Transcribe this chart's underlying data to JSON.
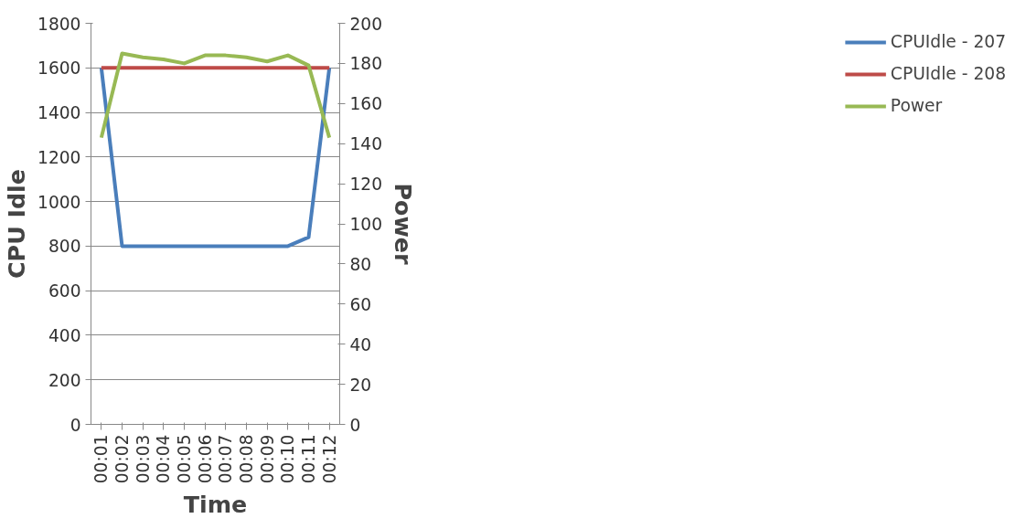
{
  "chart_data": {
    "type": "line",
    "xlabel": "Time",
    "ylabel": "CPU Idle",
    "y2label": "Power",
    "categories": [
      "00:01",
      "00:02",
      "00:03",
      "00:04",
      "00:05",
      "00:06",
      "00:07",
      "00:08",
      "00:09",
      "00:10",
      "00:11",
      "00:12"
    ],
    "series": [
      {
        "name": "CPUIdle - 207",
        "color": "#4a7ebb",
        "values": [
          1600,
          800,
          800,
          800,
          800,
          800,
          800,
          800,
          800,
          800,
          840,
          1600
        ]
      },
      {
        "name": "CPUIdle - 208",
        "color": "#be4b48",
        "values": [
          1600,
          1600,
          1600,
          1600,
          1600,
          1600,
          1600,
          1600,
          1600,
          1600,
          1600,
          1600
        ]
      },
      {
        "name": "Power",
        "color": "#98b954",
        "axis": "y2",
        "values": [
          143,
          185,
          183,
          182,
          180,
          184,
          184,
          183,
          181,
          184,
          179,
          143
        ]
      }
    ],
    "ylim": [
      0,
      1800
    ],
    "yticks": [
      0,
      200,
      400,
      600,
      800,
      1000,
      1200,
      1400,
      1600,
      1800
    ],
    "y2lim": [
      0,
      200
    ],
    "y2ticks": [
      0,
      20,
      40,
      60,
      80,
      100,
      120,
      140,
      160,
      180,
      200
    ],
    "grid": "y",
    "legend": "right",
    "marker": "none",
    "line_style": "solid"
  }
}
